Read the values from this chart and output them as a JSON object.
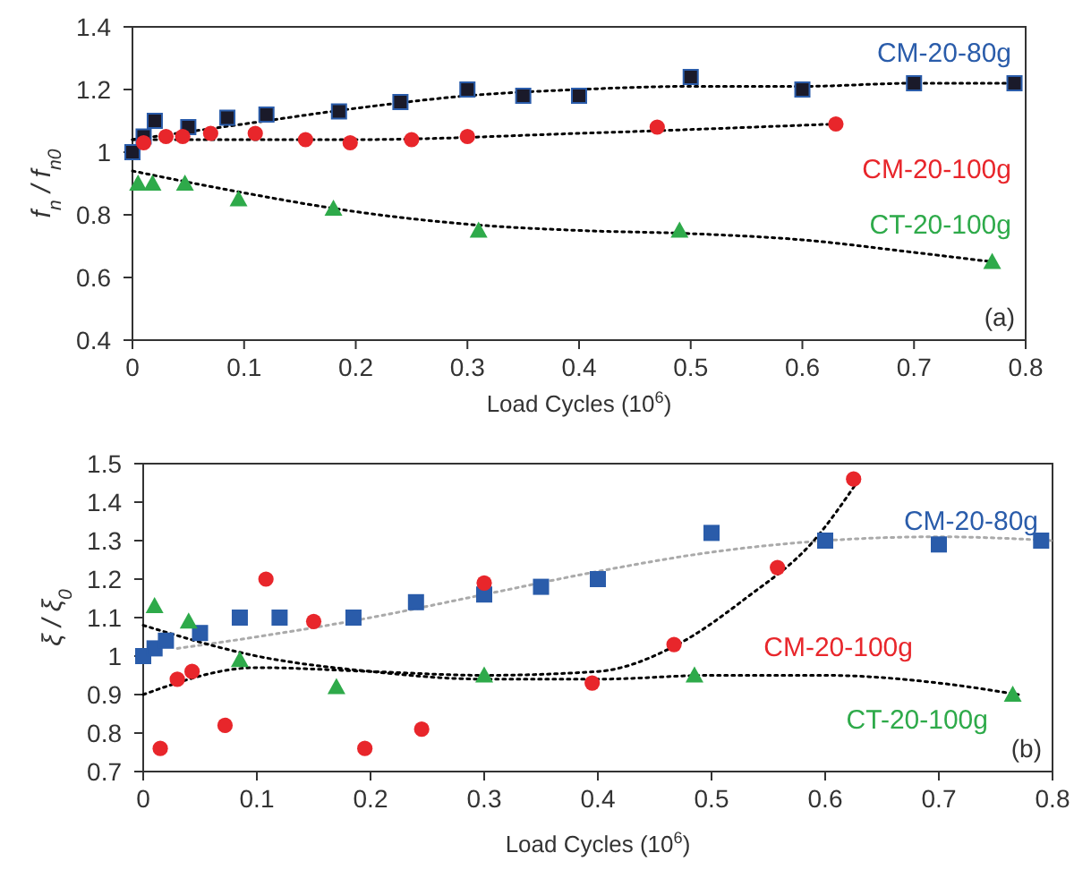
{
  "chart_data": [
    {
      "type": "scatter",
      "xlabel": "Load Cycles (10$^{6}$)",
      "ylabel": "f$_{n}$ / f$_{n0}$",
      "xlim": [
        0,
        0.8
      ],
      "xticks": [
        0,
        0.1,
        0.2,
        0.3,
        0.4,
        0.5,
        0.6,
        0.7,
        0.8
      ],
      "ylim": [
        0.4,
        1.4
      ],
      "yticks": [
        0.4,
        0.6,
        0.8,
        1,
        1.2,
        1.4
      ],
      "grid": false,
      "annotations": [
        "(a)"
      ],
      "series": [
        {
          "type": "line",
          "color": "#000000",
          "line_style": "dotted",
          "marker": "none",
          "x": [
            0,
            0.1,
            0.2,
            0.3,
            0.4,
            0.5,
            0.6,
            0.7,
            0.79
          ],
          "values": [
            1.04,
            1.09,
            1.14,
            1.18,
            1.2,
            1.21,
            1.21,
            1.22,
            1.22
          ]
        },
        {
          "type": "line",
          "color": "#000000",
          "line_style": "dotted",
          "marker": "none",
          "x": [
            0,
            0.2,
            0.4,
            0.63
          ],
          "values": [
            1.04,
            1.04,
            1.06,
            1.09
          ]
        },
        {
          "type": "line",
          "color": "#000000",
          "line_style": "dotted",
          "marker": "none",
          "x": [
            0,
            0.1,
            0.2,
            0.3,
            0.4,
            0.5,
            0.6,
            0.7,
            0.77
          ],
          "values": [
            0.94,
            0.87,
            0.81,
            0.77,
            0.75,
            0.74,
            0.72,
            0.68,
            0.65
          ]
        },
        {
          "type": "scatter",
          "name": "CM-20-80g",
          "color": "#1a1a2a",
          "marker": "square",
          "x": [
            0,
            0.01,
            0.02,
            0.05,
            0.085,
            0.12,
            0.185,
            0.24,
            0.3,
            0.35,
            0.4,
            0.5,
            0.6,
            0.7,
            0.79
          ],
          "values": [
            1.0,
            1.05,
            1.1,
            1.08,
            1.11,
            1.12,
            1.13,
            1.16,
            1.2,
            1.18,
            1.18,
            1.24,
            1.2,
            1.22,
            1.22
          ]
        },
        {
          "type": "scatter",
          "name": "CM-20-100g",
          "color": "#e8262b",
          "marker": "circle",
          "x": [
            0.01,
            0.03,
            0.045,
            0.07,
            0.11,
            0.155,
            0.195,
            0.25,
            0.3,
            0.47,
            0.63
          ],
          "values": [
            1.03,
            1.05,
            1.05,
            1.06,
            1.06,
            1.04,
            1.03,
            1.04,
            1.05,
            1.08,
            1.09
          ]
        },
        {
          "type": "scatter",
          "name": "CT-20-100g",
          "color": "#2eaa4a",
          "marker": "triangle",
          "x": [
            0.005,
            0.018,
            0.047,
            0.095,
            0.18,
            0.31,
            0.49,
            0.77
          ],
          "values": [
            0.9,
            0.9,
            0.9,
            0.85,
            0.82,
            0.75,
            0.75,
            0.65
          ]
        }
      ]
    },
    {
      "type": "scatter",
      "xlabel": "Load Cycles (10$^{6}$)",
      "ylabel": "ξ / ξ$_{0}$",
      "xlim": [
        0,
        0.8
      ],
      "xticks": [
        0,
        0.1,
        0.2,
        0.3,
        0.4,
        0.5,
        0.6,
        0.7,
        0.8
      ],
      "ylim": [
        0.7,
        1.5
      ],
      "yticks": [
        0.7,
        0.8,
        0.9,
        1,
        1.1,
        1.2,
        1.3,
        1.4,
        1.5
      ],
      "grid": false,
      "annotations": [
        "(b)"
      ],
      "series": [
        {
          "type": "line",
          "color": "#aaaaaa",
          "line_style": "dotted",
          "marker": "none",
          "x": [
            0.03,
            0.1,
            0.2,
            0.3,
            0.4,
            0.5,
            0.6,
            0.7,
            0.8
          ],
          "values": [
            1.02,
            1.05,
            1.1,
            1.16,
            1.22,
            1.27,
            1.3,
            1.31,
            1.3
          ]
        },
        {
          "type": "line",
          "color": "#000000",
          "line_style": "dotted",
          "marker": "none",
          "x": [
            0,
            0.1,
            0.2,
            0.3,
            0.4,
            0.47,
            0.53,
            0.59,
            0.63
          ],
          "values": [
            0.9,
            0.97,
            0.96,
            0.95,
            0.96,
            1.03,
            1.15,
            1.3,
            1.46
          ]
        },
        {
          "type": "line",
          "color": "#000000",
          "line_style": "dotted",
          "marker": "none",
          "x": [
            0,
            0.1,
            0.2,
            0.3,
            0.4,
            0.5,
            0.6,
            0.7,
            0.77
          ],
          "values": [
            1.08,
            1.0,
            0.96,
            0.94,
            0.94,
            0.95,
            0.95,
            0.93,
            0.9
          ]
        },
        {
          "type": "scatter",
          "name": "CM-20-80g",
          "color": "#2a5caa",
          "marker": "square",
          "x": [
            0,
            0.01,
            0.02,
            0.05,
            0.085,
            0.12,
            0.185,
            0.24,
            0.3,
            0.35,
            0.4,
            0.5,
            0.6,
            0.7,
            0.79
          ],
          "values": [
            1.0,
            1.02,
            1.04,
            1.06,
            1.1,
            1.1,
            1.1,
            1.14,
            1.16,
            1.18,
            1.2,
            1.32,
            1.3,
            1.29,
            1.3
          ]
        },
        {
          "type": "scatter",
          "name": "CM-20-100g",
          "color": "#e8262b",
          "marker": "circle",
          "x": [
            0.015,
            0.03,
            0.043,
            0.072,
            0.108,
            0.15,
            0.195,
            0.245,
            0.3,
            0.395,
            0.467,
            0.558,
            0.625
          ],
          "values": [
            0.76,
            0.94,
            0.96,
            0.82,
            1.2,
            1.09,
            0.76,
            0.81,
            1.19,
            0.93,
            1.03,
            1.23,
            1.46
          ]
        },
        {
          "type": "scatter",
          "name": "CT-20-100g",
          "color": "#2eaa4a",
          "marker": "triangle",
          "x": [
            0.01,
            0.04,
            0.085,
            0.17,
            0.3,
            0.485,
            0.765
          ],
          "values": [
            1.13,
            1.09,
            0.99,
            0.92,
            0.95,
            0.95,
            0.9
          ]
        }
      ]
    }
  ]
}
